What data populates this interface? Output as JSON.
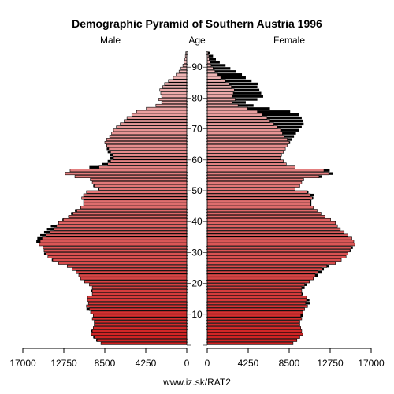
{
  "chart_data": {
    "type": "bar",
    "title": "Demographic Pyramid of Southern Austria 1996",
    "left_label": "Male",
    "center_label": "Age",
    "right_label": "Female",
    "footer": "www.iz.sk/RAT2",
    "xlim": [
      0,
      17000
    ],
    "x_ticks": [
      17000,
      12750,
      8500,
      4250,
      0
    ],
    "age_ticks": [
      10,
      20,
      30,
      40,
      50,
      60,
      70,
      80,
      90
    ],
    "ages_from": 0,
    "colors": {
      "bar_light": "#f0c0c0",
      "bar_dark": "#d02020",
      "surplus": "#000000",
      "stroke": "#000000"
    },
    "series": [
      {
        "name": "Male",
        "values": [
          8900,
          9400,
          9700,
          9900,
          9900,
          9700,
          9600,
          9600,
          9800,
          9700,
          10000,
          10400,
          10400,
          10200,
          10300,
          10300,
          9800,
          9900,
          9800,
          10100,
          10700,
          11000,
          11200,
          11500,
          11900,
          12400,
          13300,
          14000,
          14400,
          14800,
          14800,
          14900,
          15300,
          15600,
          15500,
          15200,
          14800,
          14500,
          14100,
          13400,
          12900,
          12300,
          12000,
          11600,
          11100,
          10700,
          10700,
          10900,
          10700,
          10400,
          9200,
          9700,
          9800,
          10000,
          11600,
          12600,
          12100,
          10100,
          8800,
          8200,
          8000,
          8000,
          8200,
          8300,
          8400,
          8500,
          8300,
          8000,
          7800,
          7600,
          7300,
          6900,
          6500,
          6200,
          5700,
          5200,
          4200,
          3200,
          2600,
          2900,
          2600,
          2700,
          2800,
          2500,
          2300,
          1900,
          1400,
          1100,
          800,
          600,
          400,
          300,
          200,
          150,
          100
        ]
      },
      {
        "name": "Female",
        "values": [
          8900,
          9300,
          9600,
          9900,
          9800,
          9700,
          9600,
          9600,
          9800,
          9900,
          9900,
          10100,
          10400,
          10700,
          10600,
          10300,
          9900,
          9800,
          10100,
          10300,
          10600,
          11100,
          11500,
          11900,
          12100,
          12600,
          13400,
          13900,
          14400,
          14600,
          14900,
          15100,
          15300,
          15200,
          15000,
          14600,
          14200,
          13800,
          13500,
          13300,
          12800,
          12200,
          11800,
          11400,
          11000,
          10800,
          10800,
          11000,
          11100,
          10500,
          9100,
          9600,
          9800,
          10000,
          11900,
          13000,
          12700,
          9100,
          8200,
          7900,
          7600,
          7700,
          7900,
          8100,
          8300,
          8600,
          8800,
          9000,
          9200,
          9500,
          9800,
          10000,
          9900,
          9800,
          9500,
          8600,
          6500,
          4800,
          4000,
          5200,
          5800,
          5600,
          5400,
          5200,
          5300,
          4600,
          4000,
          3600,
          3000,
          2400,
          1900,
          1300,
          900,
          600,
          300
        ]
      }
    ]
  }
}
